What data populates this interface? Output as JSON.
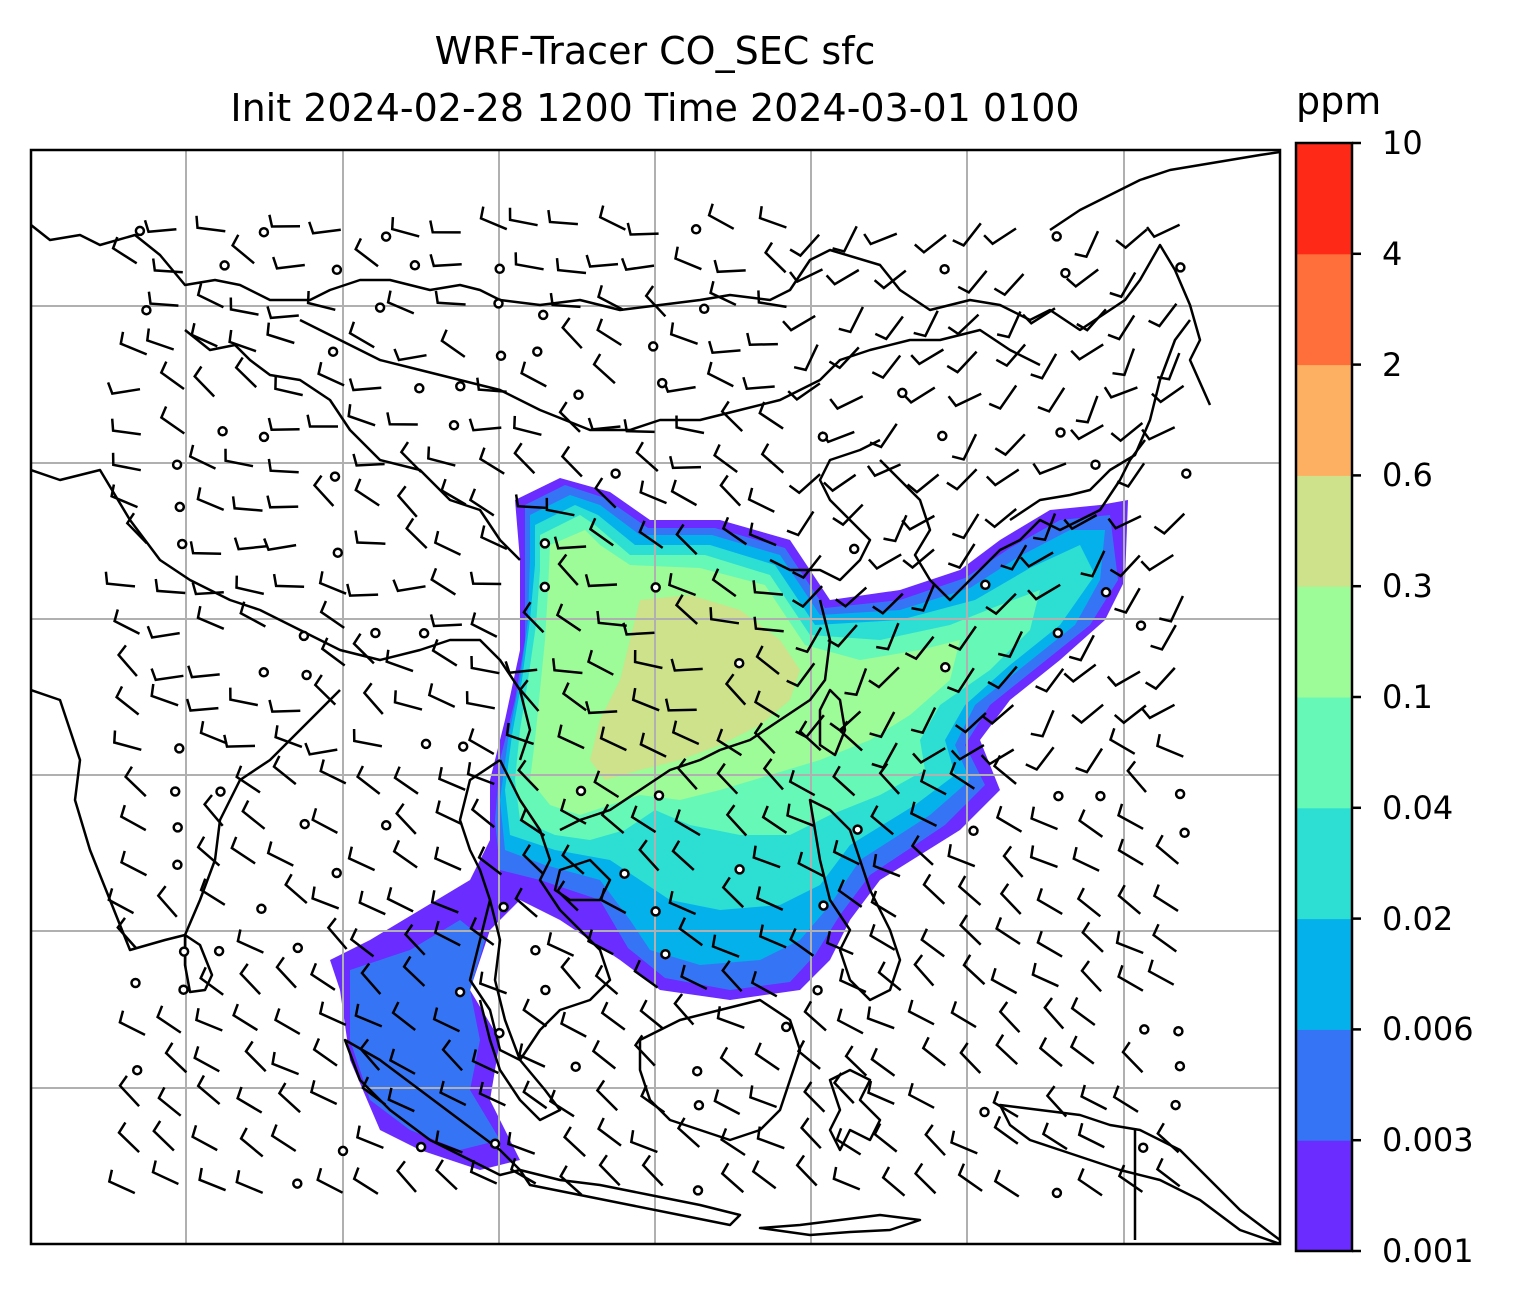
{
  "title": {
    "line1": "WRF-Tracer CO_SEC sfc",
    "line2": "Init 2024-02-28 1200 Time 2024-03-01 0100"
  },
  "colorbar": {
    "unit": "ppm",
    "levels": [
      "0.001",
      "0.003",
      "0.006",
      "0.02",
      "0.04",
      "0.1",
      "0.3",
      "0.6",
      "2",
      "4",
      "10"
    ],
    "colors": [
      "#6a2cff",
      "#3575f5",
      "#05b1ea",
      "#2ddfd3",
      "#66f8b7",
      "#9dfb98",
      "#cde28a",
      "#fdb061",
      "#fe6f3b",
      "#fe2a17"
    ]
  },
  "map": {
    "gridlines": true,
    "field_name": "CO_SEC",
    "level": "sfc",
    "wind_barbs": true,
    "coastline_color": "#000000",
    "grid_color": "#b0b0b0"
  }
}
